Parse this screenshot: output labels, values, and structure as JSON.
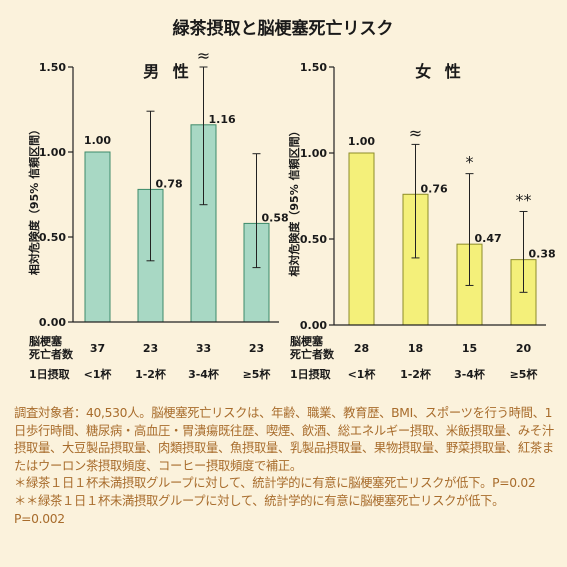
{
  "title": "緑茶摂取と脳梗塞死亡リスク",
  "row_labels": {
    "deaths_line1": "脳梗塞",
    "deaths_line2": "死亡者数",
    "intake": "1日摂取"
  },
  "chart_data": [
    {
      "type": "bar",
      "title": "男 性",
      "ylabel": "相対危険度（95% 信頼区間）",
      "yticks": [
        "0.00",
        "0.50",
        "1.00",
        "1.50"
      ],
      "ylim": [
        0,
        1.5
      ],
      "categories": [
        "<1杯",
        "1-2杯",
        "3-4杯",
        "≥5杯"
      ],
      "values": [
        1.0,
        0.78,
        1.16,
        0.58
      ],
      "value_labels": [
        "1.00",
        "0.78",
        "1.16",
        "0.58"
      ],
      "ci_low": [
        null,
        0.36,
        0.69,
        0.32
      ],
      "ci_high": [
        null,
        1.24,
        1.5,
        0.99
      ],
      "deaths": [
        "37",
        "23",
        "33",
        "23"
      ],
      "markers": [
        "",
        "",
        "≈",
        ""
      ],
      "bar_color": "#a8d8c4",
      "bar_stroke": "#3c8a6a"
    },
    {
      "type": "bar",
      "title": "女 性",
      "ylabel": "相対危険度（95% 信頼区間）",
      "yticks": [
        "0.00",
        "0.50",
        "1.00",
        "1.50"
      ],
      "ylim": [
        0,
        1.5
      ],
      "categories": [
        "<1杯",
        "1-2杯",
        "3-4杯",
        "≥5杯"
      ],
      "values": [
        1.0,
        0.76,
        0.47,
        0.38
      ],
      "value_labels": [
        "1.00",
        "0.76",
        "0.47",
        "0.38"
      ],
      "ci_low": [
        null,
        0.39,
        0.23,
        0.19
      ],
      "ci_high": [
        null,
        1.05,
        0.88,
        0.66
      ],
      "deaths": [
        "28",
        "18",
        "15",
        "20"
      ],
      "markers": [
        "",
        "≈",
        "*",
        "**"
      ],
      "bar_color": "#f4f07a",
      "bar_stroke": "#8d8c2a"
    }
  ],
  "notes": [
    "調査対象者：40,530人。脳梗塞死亡リスクは、年齢、職業、教育歴、BMI、スポーツを行う時間、1日歩行時間、糖尿病・高血圧・胃潰瘍既往歴、喫煙、飲酒、総エネルギー摂取、米飯摂取量、みそ汁摂取量、大豆製品摂取量、肉類摂取量、魚摂取量、乳製品摂取量、果物摂取量、野菜摂取量、紅茶またはウーロン茶摂取頻度、コーヒー摂取頻度で補正。",
    "＊緑茶１日１杯未満摂取グループに対して、統計学的に有意に脳梗塞死亡リスクが低下。P=0.02",
    "＊＊緑茶１日１杯未満摂取グループに対して、統計学的に有意に脳梗塞死亡リスクが低下。P=0.002"
  ],
  "colors": {
    "background": "#fbf2dc",
    "note_text": "#a86c2c"
  }
}
